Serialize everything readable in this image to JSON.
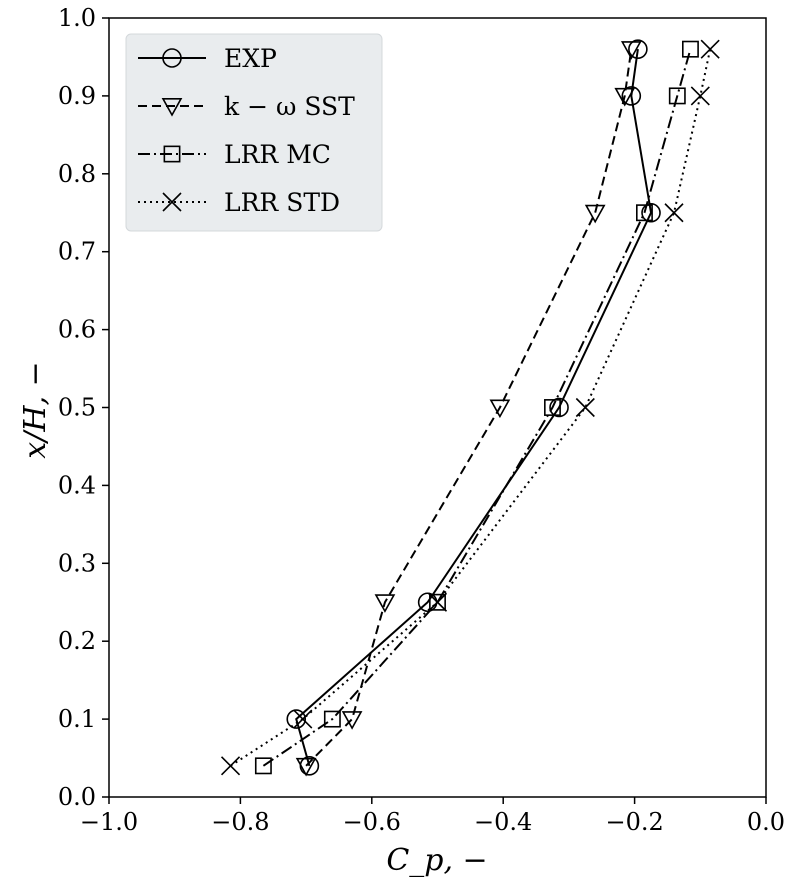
{
  "chart_data": {
    "type": "line",
    "xlabel": "C_p, −",
    "ylabel": "x/H, −",
    "xlim": [
      -1.0,
      0.0
    ],
    "ylim": [
      0.0,
      1.0
    ],
    "xticks": [
      -1.0,
      -0.8,
      -0.6,
      -0.4,
      -0.2,
      0.0
    ],
    "xtick_labels": [
      "−1.0",
      "−0.8",
      "−0.6",
      "−0.4",
      "−0.2",
      "0.0"
    ],
    "yticks": [
      0.0,
      0.1,
      0.2,
      0.3,
      0.4,
      0.5,
      0.6,
      0.7,
      0.8,
      0.9,
      1.0
    ],
    "ytick_labels": [
      "0.0",
      "0.1",
      "0.2",
      "0.3",
      "0.4",
      "0.5",
      "0.6",
      "0.7",
      "0.8",
      "0.9",
      "1.0"
    ],
    "grid": false,
    "legend_position": "top-left",
    "series": [
      {
        "name": "EXP",
        "line_style": "solid",
        "marker": "circle",
        "points": [
          {
            "x": -0.695,
            "y": 0.04
          },
          {
            "x": -0.715,
            "y": 0.1
          },
          {
            "x": -0.515,
            "y": 0.25
          },
          {
            "x": -0.315,
            "y": 0.5
          },
          {
            "x": -0.175,
            "y": 0.75
          },
          {
            "x": -0.205,
            "y": 0.9
          },
          {
            "x": -0.195,
            "y": 0.96
          }
        ]
      },
      {
        "name": "k − ω SST",
        "line_style": "dashed",
        "marker": "triangle-down",
        "points": [
          {
            "x": -0.7,
            "y": 0.04
          },
          {
            "x": -0.63,
            "y": 0.1
          },
          {
            "x": -0.58,
            "y": 0.25
          },
          {
            "x": -0.405,
            "y": 0.5
          },
          {
            "x": -0.26,
            "y": 0.75
          },
          {
            "x": -0.215,
            "y": 0.9
          },
          {
            "x": -0.205,
            "y": 0.96
          }
        ]
      },
      {
        "name": "LRR MC",
        "line_style": "dashdot",
        "marker": "square",
        "points": [
          {
            "x": -0.765,
            "y": 0.04
          },
          {
            "x": -0.66,
            "y": 0.1
          },
          {
            "x": -0.5,
            "y": 0.25
          },
          {
            "x": -0.325,
            "y": 0.5
          },
          {
            "x": -0.185,
            "y": 0.75
          },
          {
            "x": -0.135,
            "y": 0.9
          },
          {
            "x": -0.115,
            "y": 0.96
          }
        ]
      },
      {
        "name": "LRR STD",
        "line_style": "dotted",
        "marker": "x",
        "points": [
          {
            "x": -0.815,
            "y": 0.04
          },
          {
            "x": -0.705,
            "y": 0.1
          },
          {
            "x": -0.5,
            "y": 0.25
          },
          {
            "x": -0.275,
            "y": 0.5
          },
          {
            "x": -0.14,
            "y": 0.75
          },
          {
            "x": -0.1,
            "y": 0.9
          },
          {
            "x": -0.085,
            "y": 0.96
          }
        ]
      }
    ]
  }
}
